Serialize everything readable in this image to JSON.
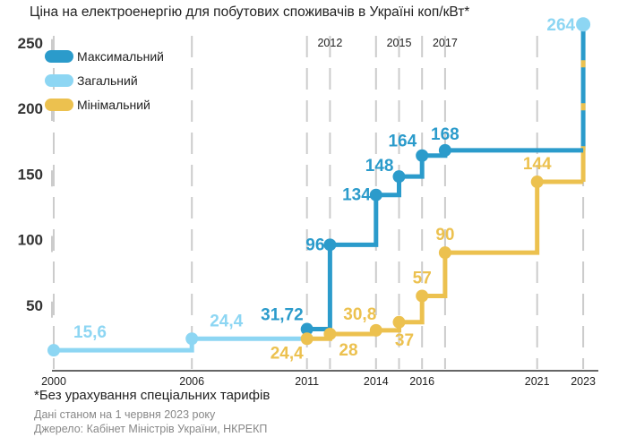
{
  "chart_data": {
    "type": "line",
    "title": "Ціна на електроенергію для побутових споживачів в Україні коп/кВт*",
    "ylim": [
      0,
      265
    ],
    "xlim": [
      2000,
      2023
    ],
    "yticks": [
      "50",
      "100",
      "150",
      "200",
      "250"
    ],
    "ytick_values": [
      50,
      100,
      150,
      200,
      250
    ],
    "xticks_bottom": [
      "2000",
      "2006",
      "2011",
      "2014",
      "2016",
      "2021",
      "2023"
    ],
    "xticks_top": [
      "2012",
      "2015",
      "2017"
    ],
    "grid_years": [
      2000,
      2006,
      2011,
      2012,
      2014,
      2015,
      2016,
      2017,
      2021,
      2023
    ],
    "step": "horizontal-then-vertical",
    "legend_position": "top-left",
    "series": [
      {
        "name": "Загальний",
        "color": "#8dd6f3",
        "points": [
          {
            "x": 2000,
            "y": 15.6,
            "label": "15,6"
          },
          {
            "x": 2006,
            "y": 24.4,
            "label": "24,4"
          },
          {
            "x": 2011,
            "y": 24.4,
            "label": ""
          }
        ],
        "final": {
          "x": 2023,
          "y": 264,
          "label": "264"
        }
      },
      {
        "name": "Максимальний",
        "color": "#2b9bcb",
        "points": [
          {
            "x": 2011,
            "y": 31.72,
            "label": "31,72"
          },
          {
            "x": 2012,
            "y": 96,
            "label": "96"
          },
          {
            "x": 2014,
            "y": 134,
            "label": "134"
          },
          {
            "x": 2015,
            "y": 148,
            "label": "148"
          },
          {
            "x": 2016,
            "y": 164,
            "label": "164"
          },
          {
            "x": 2017,
            "y": 168,
            "label": "168"
          },
          {
            "x": 2023,
            "y": 168,
            "label": ""
          }
        ]
      },
      {
        "name": "Мінімальний",
        "color": "#ecc14f",
        "points": [
          {
            "x": 2011,
            "y": 24.4,
            "label": "24,4"
          },
          {
            "x": 2012,
            "y": 28,
            "label": "28"
          },
          {
            "x": 2014,
            "y": 30.8,
            "label": "30,8"
          },
          {
            "x": 2015,
            "y": 37,
            "label": "37"
          },
          {
            "x": 2016,
            "y": 57,
            "label": "57"
          },
          {
            "x": 2017,
            "y": 90,
            "label": "90"
          },
          {
            "x": 2021,
            "y": 144,
            "label": "144"
          },
          {
            "x": 2023,
            "y": 144,
            "label": ""
          }
        ]
      }
    ]
  },
  "legend": [
    "Максимальний",
    "Загальний",
    "Мінімальний"
  ],
  "colors": {
    "max": "#2b9bcb",
    "general": "#8dd6f3",
    "min": "#ecc14f",
    "grid": "#cccccc",
    "axis": "#333333"
  },
  "footnote": "*Без урахування спеціальних тарифів",
  "date_note": "Дані станом на 1 червня 2023 року",
  "source": "Джерело: Кабінет Міністрів України, НКРЕКП"
}
